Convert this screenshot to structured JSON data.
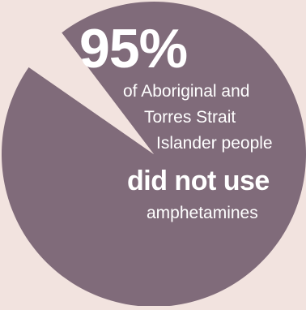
{
  "chart_data": {
    "type": "pie",
    "slices": [
      {
        "label": "did not use amphetamines",
        "value": 95,
        "color": "#806b7a"
      },
      {
        "label": "",
        "value": 5,
        "color": "#f2e3df"
      }
    ],
    "percent_label": "95%",
    "description_lines": [
      "of Aboriginal and",
      "Torres Strait",
      "Islander people"
    ],
    "emphasis": "did not use",
    "tail": "amphetamines"
  }
}
